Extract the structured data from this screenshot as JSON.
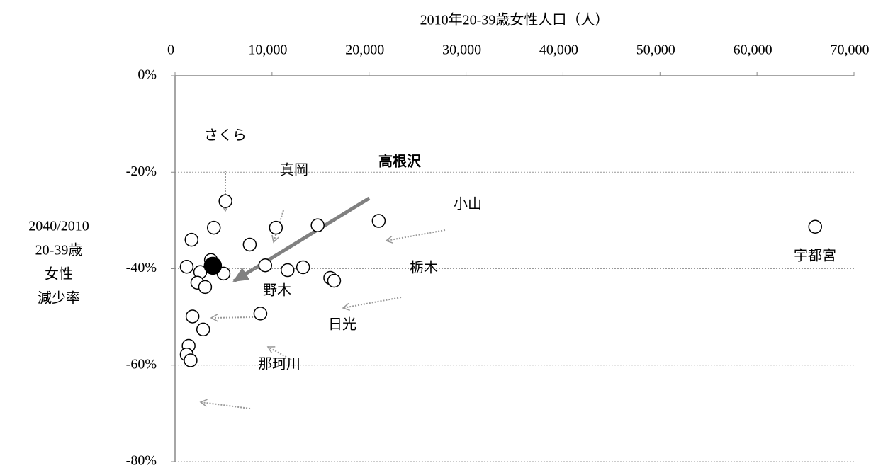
{
  "chart_data": {
    "type": "scatter",
    "x_label": "2010年20-39歳女性人口（人）",
    "y_label": [
      "2040/2010",
      "20-39歳",
      "女性",
      "減少率"
    ],
    "series": [
      {
        "color": "#ffffff",
        "x": [
          5200,
          4000,
          10400,
          14700,
          21000,
          66000,
          1700,
          7700,
          1200,
          3700,
          2600,
          9300,
          11600,
          13200,
          5000,
          16000,
          16400,
          2300,
          3100,
          1800,
          8800,
          2900,
          1400,
          1200,
          1600
        ],
        "values": [
          -26,
          -31.5,
          -31.5,
          -31,
          -30.1,
          -31.3,
          -34,
          -35,
          -39.6,
          -38.2,
          -40.7,
          -39.3,
          -40.3,
          -39.7,
          -41,
          -41.9,
          -42.5,
          -42.9,
          -43.8,
          -49.9,
          -49.3,
          -52.6,
          -56,
          -57.8,
          -59
        ]
      },
      {
        "color": "#000000",
        "x": [
          3900
        ],
        "values": [
          -39.4
        ]
      }
    ],
    "annotations": [
      "さくら",
      "真岡",
      "高根沢",
      "小山",
      "栃木",
      "野木",
      "日光",
      "那珂川",
      "宇都宮"
    ],
    "xlim": [
      0,
      70000
    ],
    "xticks": [
      0,
      {
        "value": 10000,
        "label": "10,000"
      },
      {
        "value": 20000,
        "label": "20,000"
      },
      {
        "value": 30000,
        "label": "30,000"
      },
      {
        "value": 40000,
        "label": "40,000"
      },
      {
        "value": 50000,
        "label": "50,000"
      },
      {
        "value": 60000,
        "label": "60,000"
      },
      {
        "value": 70000,
        "label": "70,000"
      }
    ],
    "ylim": [
      -80,
      0
    ],
    "yticks": [
      {
        "value": 0,
        "label": "0%"
      },
      {
        "value": -20,
        "label": "-20%"
      },
      {
        "value": -40,
        "label": "-40%"
      },
      {
        "value": -60,
        "label": "-60%"
      },
      {
        "value": -80,
        "label": "-80%"
      }
    ],
    "grid": true
  }
}
